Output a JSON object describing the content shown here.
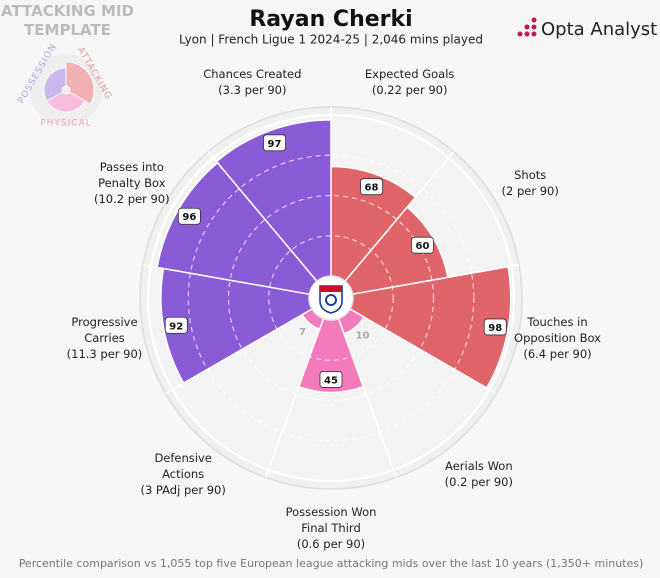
{
  "chart_data": {
    "type": "radial",
    "title": "Rayan Cherki",
    "subtitle": "Lyon | French Ligue 1 2024-25 | 2,046 mins played",
    "brand": "Opta Analyst",
    "footnote": "Percentile comparison vs 1,055 top five European league attacking mids over the last 10 years (1,350+ minutes)",
    "template": {
      "title": "ATTACKING MID TEMPLATE",
      "groups": [
        "POSSESSION",
        "ATTACKING",
        "PHYSICAL"
      ]
    },
    "categories": [
      "Expected Goals",
      "Shots",
      "Touches in Opposition Box",
      "Aerials Won",
      "Possession Won Final Third",
      "Defensive Actions",
      "Progressive Carries",
      "Passes into Penalty Box",
      "Chances Created"
    ],
    "stats": [
      "(0.22 per 90)",
      "(2 per 90)",
      "(6.4 per 90)",
      "(0.2 per 90)",
      "(0.6 per 90)",
      "(3 PAdj per 90)",
      "(11.3 per 90)",
      "(10.2 per 90)",
      "(3.3 per 90)"
    ],
    "values": [
      68,
      60,
      98,
      10,
      45,
      7,
      92,
      96,
      97
    ],
    "colors": [
      "#e0656b",
      "#e0656b",
      "#e0656b",
      "#f37bbb",
      "#f37bbb",
      "#f37bbb",
      "#8a5bd6",
      "#8a5bd6",
      "#8a5bd6"
    ],
    "ylim": [
      0,
      100
    ]
  }
}
